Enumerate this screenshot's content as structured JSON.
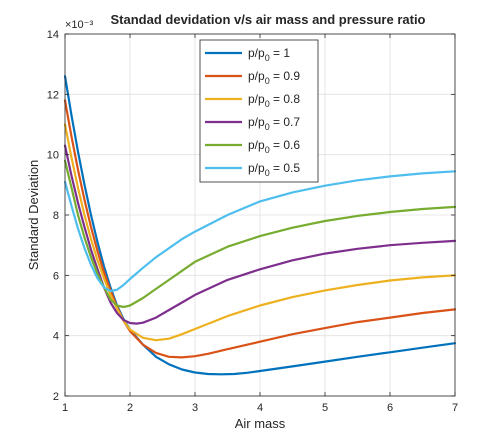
{
  "chart_data": {
    "type": "line",
    "title": "Standad devidation v/s air mass and pressure ratio",
    "xlabel": "Air mass",
    "ylabel": "Standard Deviation",
    "y_exponent_label": "×10⁻³",
    "xlim": [
      1,
      7
    ],
    "ylim": [
      2,
      14
    ],
    "xticks": [
      "1",
      "2",
      "3",
      "4",
      "5",
      "6",
      "7"
    ],
    "yticks": [
      "2",
      "4",
      "6",
      "8",
      "10",
      "12",
      "14"
    ],
    "grid": true,
    "legend_position": "top-center",
    "series": [
      {
        "name": "p/p0 = 1",
        "legend_main": "p/p",
        "legend_sub": "0",
        "legend_value": " = 1",
        "color": "#0072BD",
        "points": [
          [
            1.0,
            12.6
          ],
          [
            1.1,
            11.3
          ],
          [
            1.2,
            10.1
          ],
          [
            1.3,
            9.0
          ],
          [
            1.4,
            8.0
          ],
          [
            1.5,
            7.1
          ],
          [
            1.6,
            6.3
          ],
          [
            1.7,
            5.6
          ],
          [
            1.8,
            5.0
          ],
          [
            1.9,
            4.55
          ],
          [
            2.0,
            4.2
          ],
          [
            2.2,
            3.7
          ],
          [
            2.4,
            3.3
          ],
          [
            2.6,
            3.05
          ],
          [
            2.8,
            2.88
          ],
          [
            3.0,
            2.78
          ],
          [
            3.2,
            2.73
          ],
          [
            3.4,
            2.72
          ],
          [
            3.6,
            2.73
          ],
          [
            3.8,
            2.77
          ],
          [
            4.0,
            2.83
          ],
          [
            4.5,
            2.98
          ],
          [
            5.0,
            3.14
          ],
          [
            5.5,
            3.3
          ],
          [
            6.0,
            3.45
          ],
          [
            6.5,
            3.6
          ],
          [
            7.0,
            3.75
          ]
        ]
      },
      {
        "name": "p/p0 = 0.9",
        "legend_main": "p/p",
        "legend_sub": "0",
        "legend_value": " = 0.9",
        "color": "#D95319",
        "points": [
          [
            1.0,
            11.8
          ],
          [
            1.1,
            10.6
          ],
          [
            1.2,
            9.5
          ],
          [
            1.3,
            8.5
          ],
          [
            1.4,
            7.6
          ],
          [
            1.5,
            6.8
          ],
          [
            1.6,
            6.1
          ],
          [
            1.7,
            5.5
          ],
          [
            1.8,
            4.95
          ],
          [
            1.9,
            4.5
          ],
          [
            2.0,
            4.15
          ],
          [
            2.2,
            3.7
          ],
          [
            2.4,
            3.43
          ],
          [
            2.6,
            3.3
          ],
          [
            2.8,
            3.28
          ],
          [
            3.0,
            3.32
          ],
          [
            3.2,
            3.4
          ],
          [
            3.5,
            3.55
          ],
          [
            4.0,
            3.8
          ],
          [
            4.5,
            4.05
          ],
          [
            5.0,
            4.25
          ],
          [
            5.5,
            4.45
          ],
          [
            6.0,
            4.6
          ],
          [
            6.5,
            4.75
          ],
          [
            7.0,
            4.87
          ]
        ]
      },
      {
        "name": "p/p0 = 0.8",
        "legend_main": "p/p",
        "legend_sub": "0",
        "legend_value": " = 0.8",
        "color": "#EDB120",
        "points": [
          [
            1.0,
            11.0
          ],
          [
            1.1,
            9.9
          ],
          [
            1.2,
            8.9
          ],
          [
            1.3,
            8.0
          ],
          [
            1.4,
            7.2
          ],
          [
            1.5,
            6.5
          ],
          [
            1.6,
            5.9
          ],
          [
            1.7,
            5.35
          ],
          [
            1.8,
            4.9
          ],
          [
            1.9,
            4.5
          ],
          [
            2.0,
            4.2
          ],
          [
            2.2,
            3.93
          ],
          [
            2.4,
            3.85
          ],
          [
            2.6,
            3.9
          ],
          [
            2.8,
            4.05
          ],
          [
            3.0,
            4.22
          ],
          [
            3.5,
            4.65
          ],
          [
            4.0,
            5.0
          ],
          [
            4.5,
            5.28
          ],
          [
            5.0,
            5.5
          ],
          [
            5.5,
            5.68
          ],
          [
            6.0,
            5.83
          ],
          [
            6.5,
            5.93
          ],
          [
            7.0,
            6.0
          ]
        ]
      },
      {
        "name": "p/p0 = 0.7",
        "legend_main": "p/p",
        "legend_sub": "0",
        "legend_value": " = 0.7",
        "color": "#7E2F8E",
        "points": [
          [
            1.0,
            10.3
          ],
          [
            1.1,
            9.3
          ],
          [
            1.2,
            8.4
          ],
          [
            1.3,
            7.6
          ],
          [
            1.4,
            6.85
          ],
          [
            1.5,
            6.2
          ],
          [
            1.6,
            5.6
          ],
          [
            1.7,
            5.1
          ],
          [
            1.8,
            4.75
          ],
          [
            1.9,
            4.52
          ],
          [
            2.0,
            4.42
          ],
          [
            2.1,
            4.4
          ],
          [
            2.2,
            4.43
          ],
          [
            2.4,
            4.6
          ],
          [
            2.6,
            4.85
          ],
          [
            2.8,
            5.1
          ],
          [
            3.0,
            5.35
          ],
          [
            3.5,
            5.85
          ],
          [
            4.0,
            6.2
          ],
          [
            4.5,
            6.5
          ],
          [
            5.0,
            6.72
          ],
          [
            5.5,
            6.88
          ],
          [
            6.0,
            7.0
          ],
          [
            6.5,
            7.08
          ],
          [
            7.0,
            7.14
          ]
        ]
      },
      {
        "name": "p/p0 = 0.6",
        "legend_main": "p/p",
        "legend_sub": "0",
        "legend_value": " = 0.6",
        "color": "#77AC30",
        "points": [
          [
            1.0,
            9.8
          ],
          [
            1.1,
            8.9
          ],
          [
            1.2,
            8.0
          ],
          [
            1.3,
            7.25
          ],
          [
            1.4,
            6.6
          ],
          [
            1.5,
            6.05
          ],
          [
            1.6,
            5.6
          ],
          [
            1.7,
            5.2
          ],
          [
            1.8,
            5.0
          ],
          [
            1.9,
            4.95
          ],
          [
            2.0,
            5.0
          ],
          [
            2.2,
            5.25
          ],
          [
            2.4,
            5.55
          ],
          [
            2.6,
            5.85
          ],
          [
            2.8,
            6.15
          ],
          [
            3.0,
            6.45
          ],
          [
            3.5,
            6.95
          ],
          [
            4.0,
            7.3
          ],
          [
            4.5,
            7.58
          ],
          [
            5.0,
            7.8
          ],
          [
            5.5,
            7.97
          ],
          [
            6.0,
            8.1
          ],
          [
            6.5,
            8.2
          ],
          [
            7.0,
            8.27
          ]
        ]
      },
      {
        "name": "p/p0 = 0.5",
        "legend_main": "p/p",
        "legend_sub": "0",
        "legend_value": " = 0.5",
        "color": "#4DBEEE",
        "points": [
          [
            1.0,
            9.1
          ],
          [
            1.1,
            8.3
          ],
          [
            1.2,
            7.55
          ],
          [
            1.3,
            6.9
          ],
          [
            1.4,
            6.35
          ],
          [
            1.5,
            5.9
          ],
          [
            1.6,
            5.6
          ],
          [
            1.7,
            5.48
          ],
          [
            1.8,
            5.52
          ],
          [
            1.9,
            5.68
          ],
          [
            2.0,
            5.88
          ],
          [
            2.2,
            6.25
          ],
          [
            2.4,
            6.6
          ],
          [
            2.6,
            6.9
          ],
          [
            2.8,
            7.2
          ],
          [
            3.0,
            7.45
          ],
          [
            3.5,
            8.0
          ],
          [
            4.0,
            8.45
          ],
          [
            4.5,
            8.75
          ],
          [
            5.0,
            8.97
          ],
          [
            5.5,
            9.15
          ],
          [
            6.0,
            9.28
          ],
          [
            6.5,
            9.38
          ],
          [
            7.0,
            9.45
          ]
        ]
      }
    ]
  }
}
